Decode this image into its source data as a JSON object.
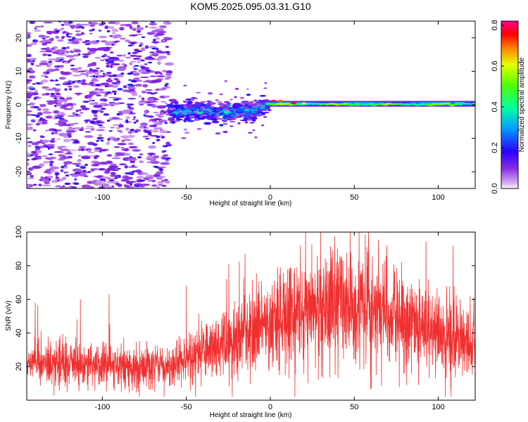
{
  "title": "KOM5.2025.095.03.31.G10",
  "chart_data": [
    {
      "type": "heatmap",
      "xlabel": "Height of straight line (km)",
      "ylabel": "Frequency (Hz)",
      "xlim": [
        -145,
        122
      ],
      "ylim": [
        -25,
        25
      ],
      "xticks": [
        -100,
        -50,
        0,
        50,
        100
      ],
      "yticks": [
        -20,
        -10,
        0,
        10,
        20
      ],
      "colorbar": {
        "label": "Normalized spectral amplitude",
        "range": [
          0.0,
          0.82
        ],
        "ticks": [
          "0.0",
          "0.2",
          "0.4",
          "0.6",
          "0.8"
        ]
      },
      "features": [
        {
          "region": "noise",
          "x_range": [
            -145,
            -60
          ],
          "freq_range": [
            -25,
            25
          ],
          "amplitude": [
            0.05,
            0.2
          ]
        },
        {
          "region": "transition",
          "x_range": [
            -60,
            -5
          ],
          "freq_center": -2,
          "amplitude": [
            0.1,
            0.4
          ]
        },
        {
          "region": "signal",
          "x_range": [
            -5,
            122
          ],
          "freq_center": 0,
          "amplitude": [
            0.3,
            0.8
          ]
        }
      ]
    },
    {
      "type": "line",
      "xlabel": "Height of straight line (km)",
      "ylabel": "SNR (v/v)",
      "xlim": [
        -145,
        122
      ],
      "ylim": [
        0,
        100
      ],
      "xticks": [
        -100,
        -50,
        0,
        50,
        100
      ],
      "yticks": [
        20,
        40,
        60,
        80,
        100
      ],
      "color": "#f03030",
      "trend": {
        "x": [
          -145,
          -120,
          -100,
          -80,
          -60,
          -40,
          -20,
          0,
          20,
          40,
          60,
          80,
          100,
          122
        ],
        "y": [
          22,
          22,
          21,
          20,
          21,
          28,
          36,
          46,
          55,
          58,
          55,
          48,
          40,
          33
        ]
      },
      "peaks": {
        "x": [
          -140,
          -113,
          -96,
          -50,
          -26,
          -15,
          6,
          12,
          28,
          30,
          37,
          40,
          67,
          68,
          84,
          118
        ],
        "y": [
          58,
          60,
          63,
          68,
          72,
          87,
          79,
          79,
          86,
          100,
          89,
          90,
          81,
          83,
          69,
          52
        ]
      }
    }
  ]
}
